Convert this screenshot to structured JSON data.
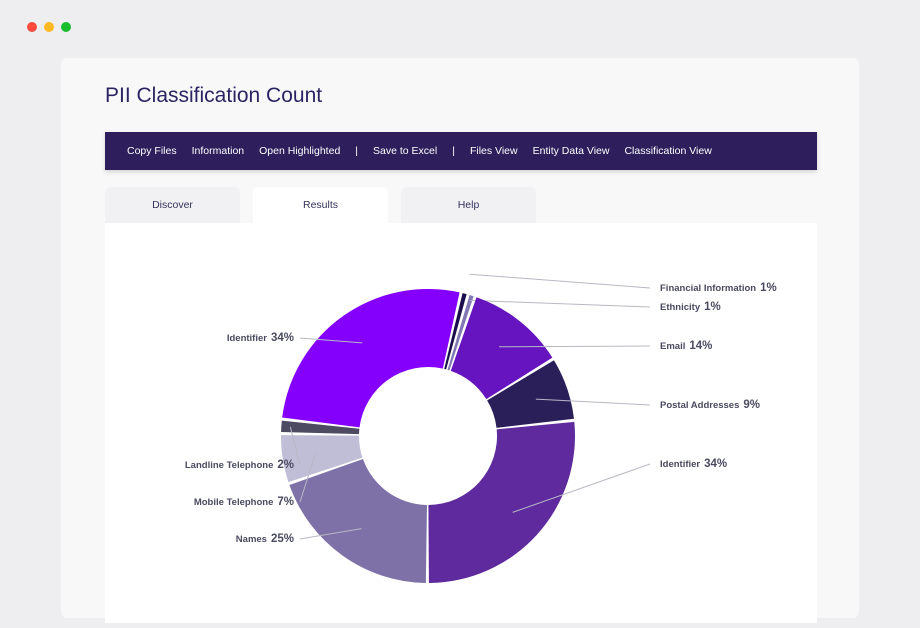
{
  "window": {
    "dots": [
      {
        "name": "close-dot",
        "color": "#fe4b3b"
      },
      {
        "name": "minimize-dot",
        "color": "#fdb923"
      },
      {
        "name": "maximize-dot",
        "color": "#19bd2e"
      }
    ]
  },
  "page": {
    "title": "PII Classification Count"
  },
  "toolbar": {
    "items": [
      "Copy Files",
      "Information",
      "Open Highlighted",
      "|",
      "Save to Excel",
      "|",
      "Files View",
      "Entity Data View",
      "Classification View"
    ]
  },
  "tabs": [
    {
      "label": "Discover",
      "active": false
    },
    {
      "label": "Results",
      "active": true
    },
    {
      "label": "Help",
      "active": false
    }
  ],
  "chart_data": {
    "type": "pie",
    "donut": true,
    "label_color": "#4a4a60",
    "slices": [
      {
        "label": "Financial Information",
        "display_value": "1%",
        "value": 1,
        "color": "#1a0e4d"
      },
      {
        "label": "Ethnicity",
        "display_value": "1%",
        "value": 1,
        "color": "#8278b4"
      },
      {
        "label": "Email",
        "display_value": "14%",
        "value": 14,
        "color": "#6514bf"
      },
      {
        "label": "Postal Addresses",
        "display_value": "9%",
        "value": 9,
        "color": "#2b1f5a"
      },
      {
        "label": "Identifier",
        "display_value": "34%",
        "value": 34,
        "color": "#5e2a9e"
      },
      {
        "label": "Names",
        "display_value": "25%",
        "value": 25,
        "color": "#7d71a8"
      },
      {
        "label": "Mobile Telephone",
        "display_value": "7%",
        "value": 7,
        "color": "#c0bed6"
      },
      {
        "label": "Landline Telephone",
        "display_value": "2%",
        "value": 2,
        "color": "#4d4b62"
      },
      {
        "label": "Identifier",
        "display_value": "34%",
        "value": 34,
        "color": "#8400fc"
      }
    ]
  }
}
